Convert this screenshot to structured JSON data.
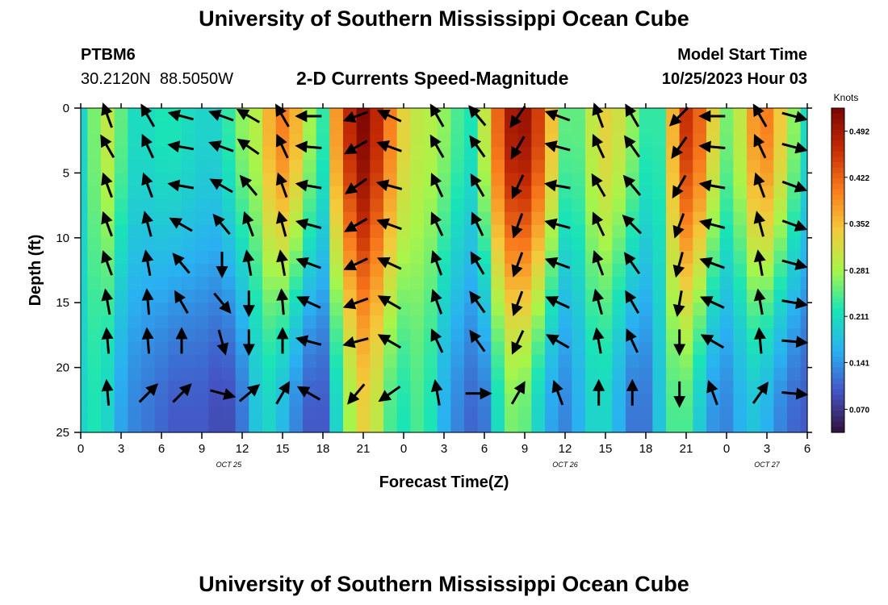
{
  "header": {
    "title": "University of Southern Mississippi Ocean Cube",
    "footer_title": "University of Southern Mississippi Ocean Cube",
    "station_id": "PTBM6",
    "station_coords": "30.2120N  88.5050W",
    "model_start_label": "Model Start Time",
    "model_start_value": "10/25/2023 Hour 03"
  },
  "chart_data": {
    "type": "heatmap",
    "title": "2-D Currents Speed-Magnitude",
    "xlabel": "Forecast Time(Z)",
    "ylabel": "Depth (ft)",
    "colorbar_label": "Knots",
    "colorbar_ticks": [
      "0.492",
      "0.422",
      "0.352",
      "0.281",
      "0.211",
      "0.141",
      "0.070"
    ],
    "colorbar_range": [
      0.035,
      0.527
    ],
    "colors": {
      "scale": [
        "#30123b",
        "#4454c4",
        "#2ab0f2",
        "#1ae4b6",
        "#a8f54a",
        "#f4c93a",
        "#f97a1c",
        "#c42a04",
        "#7a0403"
      ]
    },
    "x_ticks": [
      "0",
      "3",
      "6",
      "9",
      "12",
      "15",
      "18",
      "21",
      "0",
      "3",
      "6",
      "9",
      "12",
      "15",
      "18",
      "21",
      "0",
      "3",
      "6"
    ],
    "x_hours": [
      0,
      3,
      6,
      9,
      12,
      15,
      18,
      21,
      24,
      27,
      30,
      33,
      36,
      39,
      42,
      45,
      48,
      51,
      54
    ],
    "x_range": [
      0,
      54
    ],
    "date_labels": [
      {
        "text": "OCT 25",
        "hour": 11
      },
      {
        "text": "OCT 26",
        "hour": 36
      },
      {
        "text": "OCT 27",
        "hour": 51
      }
    ],
    "y_ticks": [
      "0",
      "5",
      "10",
      "15",
      "20",
      "25"
    ],
    "y_values": [
      0,
      5,
      10,
      15,
      20,
      25
    ],
    "y_range": [
      0,
      25
    ],
    "speed_profile": {
      "hours": [
        0,
        1,
        2,
        3,
        4,
        5,
        6,
        7,
        8,
        9,
        10,
        11,
        12,
        13,
        14,
        15,
        16,
        17,
        18,
        19,
        20,
        21,
        22,
        23,
        24,
        25,
        26,
        27,
        28,
        29,
        30,
        31,
        32,
        33,
        34,
        35,
        36,
        37,
        38,
        39,
        40,
        41,
        42,
        43,
        44,
        45,
        46,
        47,
        48,
        49,
        50,
        51,
        52,
        53,
        54
      ],
      "surface_knots": [
        0.2,
        0.26,
        0.3,
        0.25,
        0.21,
        0.21,
        0.22,
        0.22,
        0.21,
        0.2,
        0.2,
        0.23,
        0.27,
        0.29,
        0.36,
        0.4,
        0.36,
        0.28,
        0.23,
        0.38,
        0.47,
        0.52,
        0.47,
        0.4,
        0.33,
        0.3,
        0.29,
        0.27,
        0.24,
        0.22,
        0.3,
        0.42,
        0.49,
        0.5,
        0.45,
        0.35,
        0.25,
        0.25,
        0.3,
        0.33,
        0.31,
        0.27,
        0.23,
        0.23,
        0.36,
        0.46,
        0.42,
        0.33,
        0.26,
        0.3,
        0.38,
        0.4,
        0.34,
        0.27,
        0.21
      ],
      "bottom_knots": [
        0.2,
        0.22,
        0.2,
        0.15,
        0.13,
        0.12,
        0.11,
        0.1,
        0.1,
        0.1,
        0.09,
        0.09,
        0.12,
        0.18,
        0.2,
        0.17,
        0.13,
        0.1,
        0.1,
        0.2,
        0.28,
        0.33,
        0.3,
        0.24,
        0.22,
        0.24,
        0.22,
        0.16,
        0.13,
        0.11,
        0.12,
        0.21,
        0.26,
        0.25,
        0.2,
        0.15,
        0.13,
        0.16,
        0.2,
        0.2,
        0.16,
        0.12,
        0.12,
        0.18,
        0.24,
        0.24,
        0.19,
        0.14,
        0.13,
        0.16,
        0.18,
        0.16,
        0.13,
        0.11,
        0.1
      ]
    },
    "vectors_note": "arrow direction in degrees (0 = right, counter-clockwise positive)",
    "vector_columns": [
      {
        "hour": 2,
        "dirs": [
          110,
          120,
          110,
          110,
          110,
          100,
          95,
          95
        ]
      },
      {
        "hour": 5,
        "dirs": [
          120,
          115,
          110,
          105,
          100,
          95,
          95,
          45
        ]
      },
      {
        "hour": 7.5,
        "dirs": [
          165,
          170,
          170,
          150,
          130,
          120,
          90,
          45
        ]
      },
      {
        "hour": 10.5,
        "dirs": [
          160,
          160,
          150,
          130,
          270,
          310,
          285,
          345
        ]
      },
      {
        "hour": 12.5,
        "dirs": [
          150,
          145,
          130,
          110,
          100,
          270,
          270,
          40
        ]
      },
      {
        "hour": 15,
        "dirs": [
          120,
          115,
          110,
          105,
          100,
          95,
          90,
          60
        ]
      },
      {
        "hour": 17,
        "dirs": [
          180,
          175,
          170,
          165,
          160,
          155,
          165,
          150
        ]
      },
      {
        "hour": 20.5,
        "dirs": [
          200,
          210,
          215,
          210,
          205,
          200,
          195,
          230
        ]
      },
      {
        "hour": 23,
        "dirs": [
          155,
          160,
          165,
          160,
          155,
          150,
          150,
          215
        ]
      },
      {
        "hour": 26.5,
        "dirs": [
          120,
          120,
          115,
          115,
          110,
          110,
          115,
          100
        ]
      },
      {
        "hour": 29.5,
        "dirs": [
          130,
          125,
          120,
          115,
          120,
          125,
          125,
          0
        ]
      },
      {
        "hour": 32.5,
        "dirs": [
          235,
          240,
          245,
          250,
          250,
          250,
          245,
          60
        ]
      },
      {
        "hour": 35.5,
        "dirs": [
          160,
          165,
          170,
          165,
          160,
          155,
          150,
          110
        ]
      },
      {
        "hour": 38.5,
        "dirs": [
          110,
          115,
          120,
          115,
          110,
          105,
          100,
          90
        ]
      },
      {
        "hour": 41,
        "dirs": [
          120,
          125,
          130,
          135,
          125,
          120,
          115,
          90
        ]
      },
      {
        "hour": 44.5,
        "dirs": [
          225,
          235,
          240,
          250,
          255,
          260,
          270,
          270
        ]
      },
      {
        "hour": 47,
        "dirs": [
          180,
          175,
          170,
          165,
          160,
          155,
          150,
          110
        ]
      },
      {
        "hour": 50.5,
        "dirs": [
          120,
          115,
          110,
          105,
          100,
          100,
          95,
          55
        ]
      },
      {
        "hour": 53,
        "dirs": [
          345,
          345,
          340,
          340,
          345,
          350,
          355,
          355
        ]
      }
    ],
    "vector_depths_ft": [
      0,
      3,
      6,
      9,
      12,
      15,
      18,
      22
    ],
    "grid": false
  }
}
